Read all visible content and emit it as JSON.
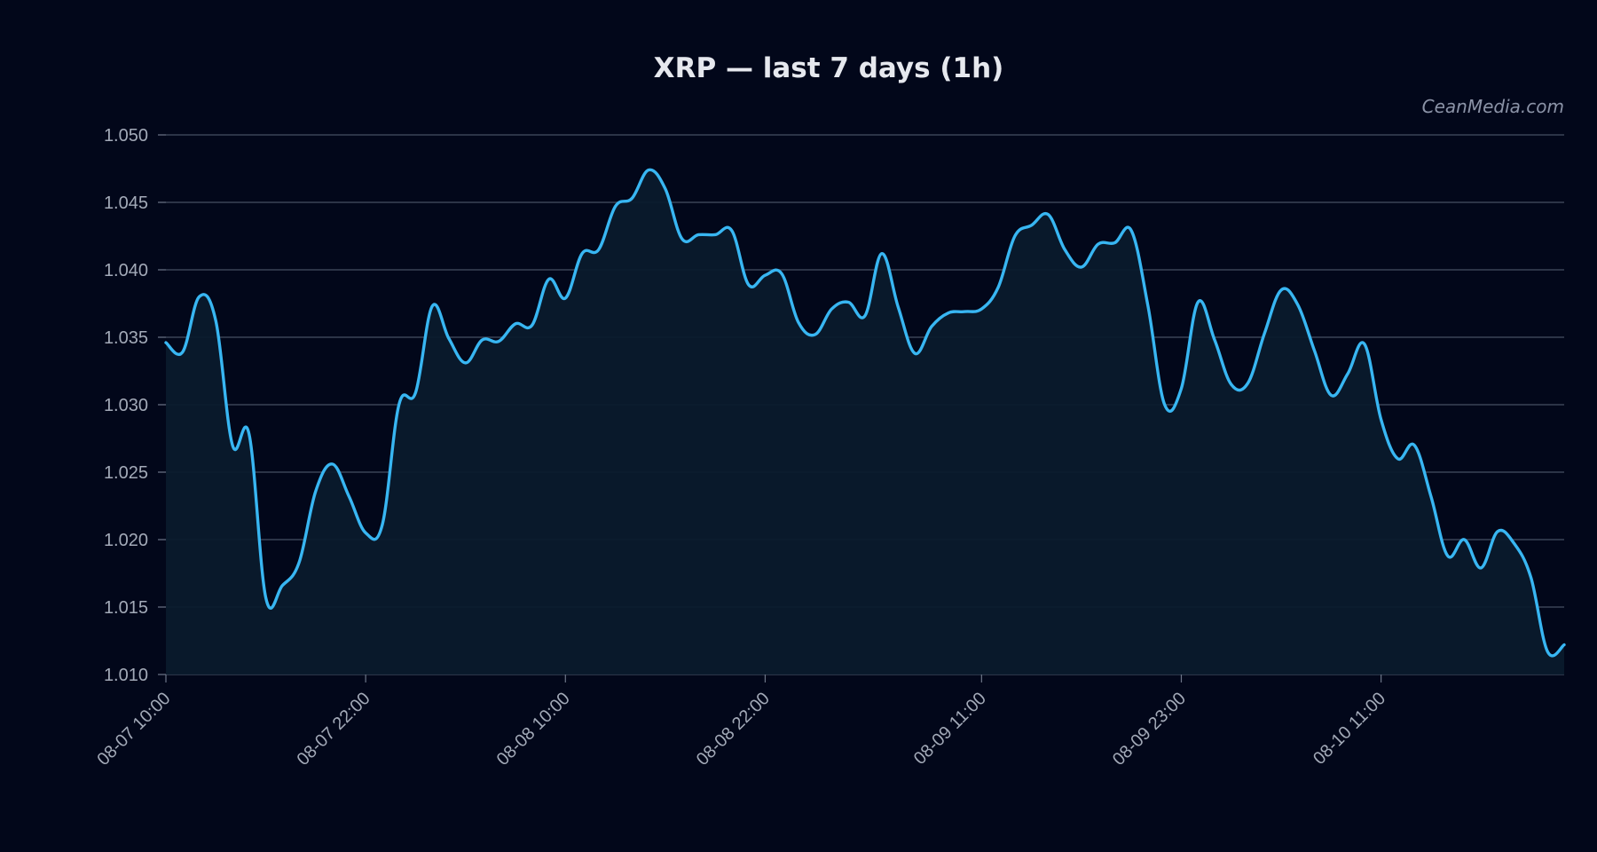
{
  "chart_data": {
    "type": "line",
    "title": "XRP — last 7 days (1h)",
    "watermark": "CeanMedia.com",
    "xlabel": "",
    "ylabel": "",
    "ylim": [
      1.01,
      1.05
    ],
    "y_ticks": [
      "1.050",
      "1.045",
      "1.040",
      "1.035",
      "1.030",
      "1.025",
      "1.020",
      "1.015",
      "1.010"
    ],
    "x_ticks": [
      {
        "index": 0,
        "label": "08-07 10:00"
      },
      {
        "index": 12,
        "label": "08-07 22:00"
      },
      {
        "index": 24,
        "label": "08-08 10:00"
      },
      {
        "index": 36,
        "label": "08-08 22:00"
      },
      {
        "index": 49,
        "label": "08-09 11:00"
      },
      {
        "index": 61,
        "label": "08-09 23:00"
      },
      {
        "index": 73,
        "label": "08-10 11:00"
      }
    ],
    "x_start": "08-07 10:00",
    "x_step": "1h",
    "grid": true,
    "colors": {
      "line": "#38b6f2",
      "fill": "#0a1a2c",
      "background": "#02071a"
    },
    "series": [
      {
        "values": [
          1.0346,
          1.0339,
          1.038,
          1.0362,
          1.027,
          1.0278,
          1.0157,
          1.0166,
          1.0183,
          1.0236,
          1.0256,
          1.0232,
          1.0205,
          1.0211,
          1.03,
          1.0309,
          1.0373,
          1.0349,
          1.0331,
          1.0348,
          1.0347,
          1.036,
          1.0359,
          1.0393,
          1.0379,
          1.0412,
          1.0415,
          1.0447,
          1.0453,
          1.0474,
          1.046,
          1.0423,
          1.0426,
          1.0426,
          1.0429,
          1.0389,
          1.0396,
          1.0397,
          1.0361,
          1.0352,
          1.0371,
          1.0376,
          1.0366,
          1.0412,
          1.0372,
          1.0338,
          1.0358,
          1.0368,
          1.0369,
          1.0371,
          1.0387,
          1.0425,
          1.0433,
          1.0441,
          1.0415,
          1.0402,
          1.0419,
          1.042,
          1.0429,
          1.0373,
          1.03,
          1.0312,
          1.0376,
          1.0348,
          1.0315,
          1.0316,
          1.0353,
          1.0385,
          1.0374,
          1.034,
          1.0307,
          1.0323,
          1.0345,
          1.0289,
          1.026,
          1.027,
          1.0232,
          1.0188,
          1.02,
          1.0179,
          1.0206,
          1.0197,
          1.0172,
          1.0117,
          1.0122
        ]
      }
    ]
  }
}
